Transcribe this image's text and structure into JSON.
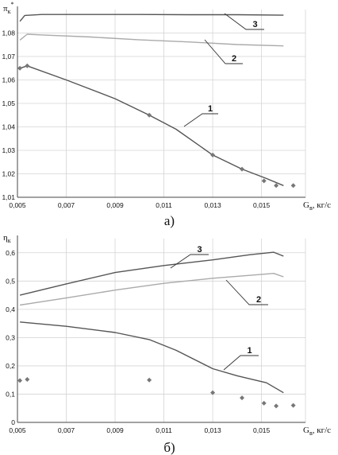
{
  "chart_data": [
    {
      "type": "line",
      "caption": "а)",
      "ylabel": "π",
      "ylabel_sub": "к",
      "ylabel_sup": "*",
      "xlabel": "G",
      "xlabel_sub": "в",
      "xlabel_unit": ", кг/с",
      "xlim": [
        0.005,
        0.0168
      ],
      "ylim": [
        1.01,
        1.09
      ],
      "x_ticks": [
        "0,005",
        "0,007",
        "0,009",
        "0,011",
        "0,013",
        "0,015"
      ],
      "y_ticks": [
        "1,01",
        "1,02",
        "1,03",
        "1,04",
        "1,05",
        "1,06",
        "1,07",
        "1,08"
      ],
      "grid": true,
      "series": [
        {
          "name": "1",
          "color": "#555555",
          "x": [
            0.0051,
            0.0054,
            0.007,
            0.009,
            0.0104,
            0.0115,
            0.013,
            0.0142,
            0.0152,
            0.0159
          ],
          "y": [
            1.065,
            1.066,
            1.06,
            1.052,
            1.045,
            1.039,
            1.028,
            1.022,
            1.018,
            1.015
          ]
        },
        {
          "name": "2",
          "color": "#aaaaaa",
          "x": [
            0.0051,
            0.0054,
            0.006,
            0.008,
            0.01,
            0.012,
            0.014,
            0.0159
          ],
          "y": [
            1.077,
            1.0795,
            1.0792,
            1.0783,
            1.0771,
            1.0762,
            1.0751,
            1.0745
          ]
        },
        {
          "name": "3",
          "color": "#555555",
          "x": [
            0.0051,
            0.0053,
            0.006,
            0.008,
            0.01,
            0.012,
            0.014,
            0.0159
          ],
          "y": [
            1.085,
            1.0875,
            1.0879,
            1.0879,
            1.0879,
            1.0878,
            1.0878,
            1.0876
          ]
        }
      ],
      "markers": {
        "color": "#777777",
        "x": [
          0.0051,
          0.0054,
          0.0104,
          0.013,
          0.0142,
          0.0151,
          0.0156,
          0.0163
        ],
        "y": [
          1.065,
          1.066,
          1.045,
          1.028,
          1.022,
          1.017,
          1.015,
          1.015
        ]
      }
    },
    {
      "type": "line",
      "caption": "б)",
      "ylabel": "η",
      "ylabel_sub": "к",
      "xlabel": "G",
      "xlabel_sub": "в",
      "xlabel_unit": ", кг/с",
      "xlim": [
        0.005,
        0.0168
      ],
      "ylim": [
        0,
        0.65
      ],
      "x_ticks": [
        "0,005",
        "0,007",
        "0,009",
        "0,011",
        "0,013",
        "0,015"
      ],
      "y_ticks": [
        "0",
        "0,1",
        "0,2",
        "0,3",
        "0,4",
        "0,5",
        "0,6"
      ],
      "grid": true,
      "series": [
        {
          "name": "1",
          "color": "#555555",
          "x": [
            0.0051,
            0.007,
            0.009,
            0.0104,
            0.0115,
            0.013,
            0.014,
            0.0152,
            0.0159
          ],
          "y": [
            0.355,
            0.34,
            0.318,
            0.293,
            0.255,
            0.19,
            0.165,
            0.14,
            0.105
          ]
        },
        {
          "name": "2",
          "color": "#aaaaaa",
          "x": [
            0.0051,
            0.007,
            0.009,
            0.011,
            0.013,
            0.0145,
            0.0155,
            0.0159
          ],
          "y": [
            0.415,
            0.44,
            0.468,
            0.492,
            0.51,
            0.52,
            0.527,
            0.515
          ]
        },
        {
          "name": "3",
          "color": "#555555",
          "x": [
            0.0051,
            0.007,
            0.009,
            0.011,
            0.013,
            0.0145,
            0.0155,
            0.0159
          ],
          "y": [
            0.45,
            0.49,
            0.53,
            0.555,
            0.575,
            0.593,
            0.602,
            0.588
          ]
        }
      ],
      "markers": {
        "color": "#777777",
        "x": [
          0.0051,
          0.0054,
          0.0104,
          0.013,
          0.0142,
          0.0151,
          0.0156,
          0.0163
        ],
        "y": [
          0.148,
          0.152,
          0.15,
          0.105,
          0.087,
          0.068,
          0.058,
          0.06
        ]
      }
    }
  ]
}
